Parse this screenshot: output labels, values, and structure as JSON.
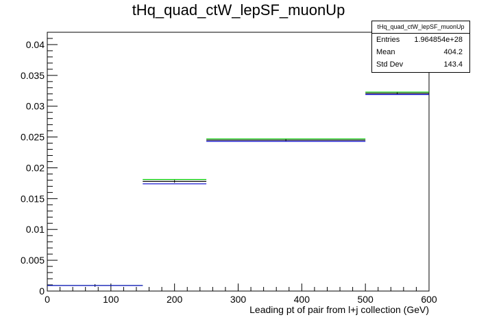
{
  "chart_data": {
    "type": "histogram",
    "title": "tHq_quad_ctW_lepSF_muonUp",
    "xlabel": "Leading pt of pair from l+j collection (GeV)",
    "ylabel": "",
    "xlim": [
      0,
      600
    ],
    "ylim": [
      0,
      0.042
    ],
    "x_ticks": [
      0,
      100,
      200,
      300,
      400,
      500,
      600
    ],
    "y_ticks": [
      0,
      0.005,
      0.01,
      0.015,
      0.02,
      0.025,
      0.03,
      0.035,
      0.04
    ],
    "x_tick_labels": [
      "0",
      "100",
      "200",
      "300",
      "400",
      "500",
      "600"
    ],
    "y_tick_labels": [
      "0",
      "0.005",
      "0.01",
      "0.015",
      "0.02",
      "0.025",
      "0.03",
      "0.035",
      "0.04"
    ],
    "bin_edges": [
      0,
      150,
      250,
      500,
      600
    ],
    "series": [
      {
        "color": "#000000",
        "values": [
          0.0009,
          0.0178,
          0.0245,
          0.0321
        ]
      },
      {
        "color": "#00cc00",
        "values": [
          0.0009,
          0.0181,
          0.0247,
          0.0323
        ]
      },
      {
        "color": "#0000cc",
        "values": [
          0.0009,
          0.0174,
          0.0243,
          0.0319
        ]
      }
    ],
    "grid": false,
    "stats_box": {
      "title": "tHq_quad_ctW_lepSF_muonUp",
      "rows": [
        {
          "label": "Entries",
          "value": "1.964854e+28"
        },
        {
          "label": "Mean",
          "value": "404.2"
        },
        {
          "label": "Std Dev",
          "value": "143.4"
        }
      ]
    }
  }
}
